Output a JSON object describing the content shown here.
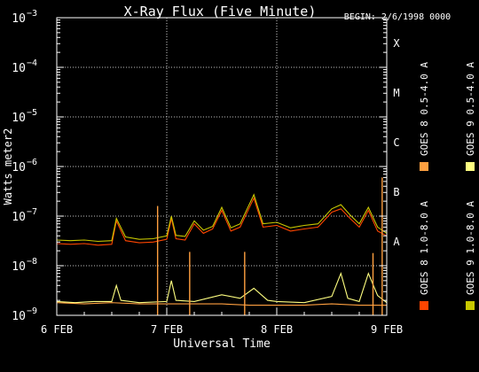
{
  "chart_data": {
    "type": "line",
    "title": "X-Ray Flux (Five Minute)",
    "begin_label": "BEGIN: 2/6/1998 0000",
    "xlabel": "Universal Time",
    "ylabel": "Watts meter2",
    "y_scale": "log",
    "ylim": [
      1e-09,
      0.001
    ],
    "y_ticks": [
      {
        "value": 1e-09,
        "base": "10",
        "exp": "−9"
      },
      {
        "value": 1e-08,
        "base": "10",
        "exp": "−8"
      },
      {
        "value": 1e-07,
        "base": "10",
        "exp": "−7"
      },
      {
        "value": 1e-06,
        "base": "10",
        "exp": "−6"
      },
      {
        "value": 1e-05,
        "base": "10",
        "exp": "−5"
      },
      {
        "value": 0.0001,
        "base": "10",
        "exp": "−4"
      },
      {
        "value": 0.001,
        "base": "10",
        "exp": "−3"
      }
    ],
    "x_range": [
      "1998-02-06 00:00",
      "1998-02-09 00:00"
    ],
    "x_ticks": [
      {
        "date": "1998-02-06",
        "label": "6 FEB"
      },
      {
        "date": "1998-02-07",
        "label": "7 FEB"
      },
      {
        "date": "1998-02-08",
        "label": "8 FEB"
      },
      {
        "date": "1998-02-09",
        "label": "9 FEB"
      }
    ],
    "flare_classes": [
      {
        "label": "A",
        "value": 1e-08
      },
      {
        "label": "B",
        "value": 1e-07
      },
      {
        "label": "C",
        "value": 1e-06
      },
      {
        "label": "M",
        "value": 1e-05
      },
      {
        "label": "X",
        "value": 0.0001
      }
    ],
    "grid": true,
    "legend_position": "right-vertical",
    "series": [
      {
        "name": "GOES 8 1.0-8.0 A",
        "color": "#ff4500",
        "points": [
          [
            "1998-02-06 00:00",
            2.8e-08
          ],
          [
            "1998-02-06 03:00",
            2.7e-08
          ],
          [
            "1998-02-06 06:00",
            2.8e-08
          ],
          [
            "1998-02-06 09:00",
            2.6e-08
          ],
          [
            "1998-02-06 12:00",
            2.7e-08
          ],
          [
            "1998-02-06 13:00",
            8e-08
          ],
          [
            "1998-02-06 15:00",
            3.2e-08
          ],
          [
            "1998-02-06 18:00",
            2.9e-08
          ],
          [
            "1998-02-06 21:00",
            3e-08
          ],
          [
            "1998-02-07 00:00",
            3.4e-08
          ],
          [
            "1998-02-07 01:00",
            9e-08
          ],
          [
            "1998-02-07 02:00",
            3.5e-08
          ],
          [
            "1998-02-07 04:00",
            3.3e-08
          ],
          [
            "1998-02-07 06:00",
            7e-08
          ],
          [
            "1998-02-07 08:00",
            4.5e-08
          ],
          [
            "1998-02-07 10:00",
            5.5e-08
          ],
          [
            "1998-02-07 12:00",
            1.3e-07
          ],
          [
            "1998-02-07 14:00",
            5e-08
          ],
          [
            "1998-02-07 16:00",
            6e-08
          ],
          [
            "1998-02-07 19:00",
            2.3e-07
          ],
          [
            "1998-02-07 21:00",
            6e-08
          ],
          [
            "1998-02-08 00:00",
            6.5e-08
          ],
          [
            "1998-02-08 03:00",
            5e-08
          ],
          [
            "1998-02-08 06:00",
            5.5e-08
          ],
          [
            "1998-02-08 09:00",
            6e-08
          ],
          [
            "1998-02-08 12:00",
            1.2e-07
          ],
          [
            "1998-02-08 14:00",
            1.4e-07
          ],
          [
            "1998-02-08 16:00",
            9e-08
          ],
          [
            "1998-02-08 18:00",
            6e-08
          ],
          [
            "1998-02-08 20:00",
            1.3e-07
          ],
          [
            "1998-02-08 22:00",
            5e-08
          ],
          [
            "1998-02-09 00:00",
            4e-08
          ]
        ]
      },
      {
        "name": "GOES 8 0.5-4.0 A",
        "color": "#ffa040",
        "points": [
          [
            "1998-02-06 00:00",
            1.8e-09
          ],
          [
            "1998-02-06 06:00",
            1.7e-09
          ],
          [
            "1998-02-06 12:00",
            1.8e-09
          ],
          [
            "1998-02-06 18:00",
            1.7e-09
          ],
          [
            "1998-02-07 00:00",
            1.7e-09
          ],
          [
            "1998-02-07 06:00",
            1.7e-09
          ],
          [
            "1998-02-07 12:00",
            1.7e-09
          ],
          [
            "1998-02-07 18:00",
            1.6e-09
          ],
          [
            "1998-02-08 00:00",
            1.6e-09
          ],
          [
            "1998-02-08 06:00",
            1.6e-09
          ],
          [
            "1998-02-08 12:00",
            1.7e-09
          ],
          [
            "1998-02-08 18:00",
            1.6e-09
          ],
          [
            "1998-02-09 00:00",
            1.6e-09
          ]
        ]
      },
      {
        "name": "GOES 9 1.0-8.0 A",
        "color": "#c8c800",
        "points": [
          [
            "1998-02-06 00:00",
            3.3e-08
          ],
          [
            "1998-02-06 03:00",
            3.2e-08
          ],
          [
            "1998-02-06 06:00",
            3.3e-08
          ],
          [
            "1998-02-06 09:00",
            3.1e-08
          ],
          [
            "1998-02-06 12:00",
            3.2e-08
          ],
          [
            "1998-02-06 13:00",
            9e-08
          ],
          [
            "1998-02-06 15:00",
            3.8e-08
          ],
          [
            "1998-02-06 18:00",
            3.4e-08
          ],
          [
            "1998-02-06 21:00",
            3.5e-08
          ],
          [
            "1998-02-07 00:00",
            4e-08
          ],
          [
            "1998-02-07 01:00",
            1e-07
          ],
          [
            "1998-02-07 02:00",
            4.1e-08
          ],
          [
            "1998-02-07 04:00",
            3.9e-08
          ],
          [
            "1998-02-07 06:00",
            8e-08
          ],
          [
            "1998-02-07 08:00",
            5.2e-08
          ],
          [
            "1998-02-07 10:00",
            6.2e-08
          ],
          [
            "1998-02-07 12:00",
            1.5e-07
          ],
          [
            "1998-02-07 14:00",
            5.8e-08
          ],
          [
            "1998-02-07 16:00",
            7e-08
          ],
          [
            "1998-02-07 19:00",
            2.7e-07
          ],
          [
            "1998-02-07 21:00",
            7e-08
          ],
          [
            "1998-02-08 00:00",
            7.5e-08
          ],
          [
            "1998-02-08 03:00",
            5.8e-08
          ],
          [
            "1998-02-08 06:00",
            6.5e-08
          ],
          [
            "1998-02-08 09:00",
            7e-08
          ],
          [
            "1998-02-08 12:00",
            1.4e-07
          ],
          [
            "1998-02-08 14:00",
            1.7e-07
          ],
          [
            "1998-02-08 16:00",
            1.05e-07
          ],
          [
            "1998-02-08 18:00",
            7e-08
          ],
          [
            "1998-02-08 20:00",
            1.5e-07
          ],
          [
            "1998-02-08 22:00",
            6e-08
          ],
          [
            "1998-02-09 00:00",
            4.5e-08
          ]
        ]
      },
      {
        "name": "GOES 9 0.5-4.0 A",
        "color": "#ffff80",
        "points": [
          [
            "1998-02-06 00:00",
            1.9e-09
          ],
          [
            "1998-02-06 04:00",
            1.8e-09
          ],
          [
            "1998-02-06 08:00",
            1.9e-09
          ],
          [
            "1998-02-06 12:00",
            1.9e-09
          ],
          [
            "1998-02-06 13:00",
            4e-09
          ],
          [
            "1998-02-06 14:00",
            2e-09
          ],
          [
            "1998-02-06 18:00",
            1.8e-09
          ],
          [
            "1998-02-07 00:00",
            1.9e-09
          ],
          [
            "1998-02-07 01:00",
            5e-09
          ],
          [
            "1998-02-07 02:00",
            2e-09
          ],
          [
            "1998-02-07 06:00",
            1.9e-09
          ],
          [
            "1998-02-07 12:00",
            2.6e-09
          ],
          [
            "1998-02-07 16:00",
            2.2e-09
          ],
          [
            "1998-02-07 19:00",
            3.5e-09
          ],
          [
            "1998-02-07 22:00",
            2e-09
          ],
          [
            "1998-02-08 00:00",
            1.9e-09
          ],
          [
            "1998-02-08 06:00",
            1.8e-09
          ],
          [
            "1998-02-08 12:00",
            2.4e-09
          ],
          [
            "1998-02-08 14:00",
            7e-09
          ],
          [
            "1998-02-08 15:30",
            2.2e-09
          ],
          [
            "1998-02-08 18:00",
            1.9e-09
          ],
          [
            "1998-02-08 20:00",
            7e-09
          ],
          [
            "1998-02-08 22:00",
            2.5e-09
          ],
          [
            "1998-02-09 00:00",
            1.8e-09
          ]
        ]
      }
    ],
    "spikes": [
      {
        "time": "1998-02-06 22:00",
        "peak": 1.6e-07,
        "color": "#ffa040"
      },
      {
        "time": "1998-02-07 05:00",
        "peak": 1.9e-08,
        "color": "#ffa040"
      },
      {
        "time": "1998-02-07 17:00",
        "peak": 1.9e-08,
        "color": "#ffa040"
      },
      {
        "time": "1998-02-08 21:00",
        "peak": 1.8e-08,
        "color": "#ffa040"
      },
      {
        "time": "1998-02-08 23:00",
        "peak": 6e-07,
        "color": "#ffa040"
      }
    ]
  }
}
